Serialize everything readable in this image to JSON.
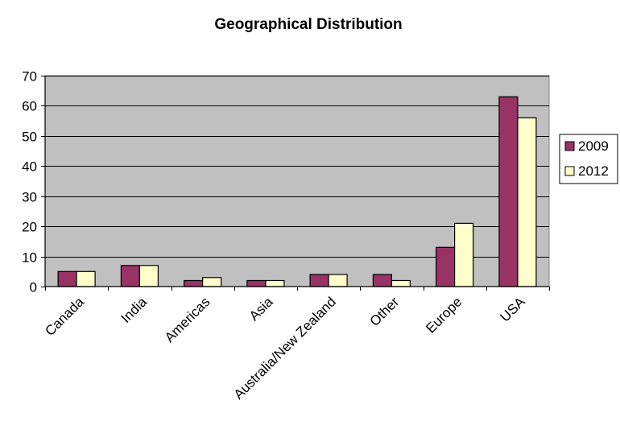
{
  "chart_data": {
    "type": "bar",
    "title": "Geographical Distribution",
    "xlabel": "",
    "ylabel": "",
    "categories": [
      "Canada",
      "India",
      "Americas",
      "Asia",
      "Australia/New Zealand",
      "Other",
      "Europe",
      "USA"
    ],
    "series": [
      {
        "name": "2009",
        "color": "#993366",
        "values": [
          5,
          7,
          2,
          2,
          4,
          4,
          13,
          63
        ]
      },
      {
        "name": "2012",
        "color": "#ffffcc",
        "values": [
          5,
          7,
          3,
          2,
          4,
          2,
          21,
          56
        ]
      }
    ],
    "ylim": [
      0,
      70
    ],
    "yticks": [
      0,
      10,
      20,
      30,
      40,
      50,
      60,
      70
    ],
    "grid": true,
    "legend": "right",
    "plot_background": "#c0c0c0"
  }
}
